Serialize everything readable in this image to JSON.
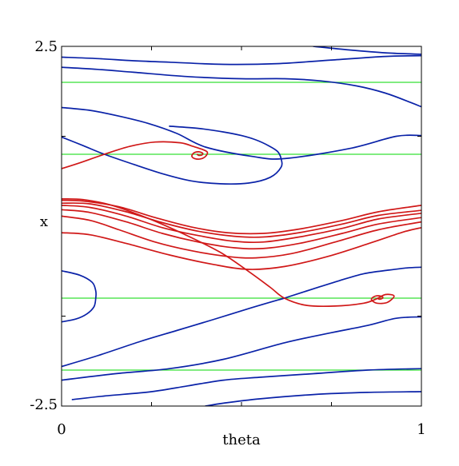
{
  "chart_data": {
    "type": "line",
    "title": "",
    "xlabel": "theta",
    "ylabel": "x",
    "xlim": [
      0,
      1
    ],
    "ylim": [
      -2.5,
      2.5
    ],
    "x_tick_labels": [
      "0",
      "1"
    ],
    "y_tick_labels": [
      "2.5",
      "-2.5"
    ],
    "grid": false,
    "colors": {
      "blue": "#0a22a8",
      "red": "#d01818",
      "green": "#34e034",
      "frame": "#000000"
    },
    "horizontal_lines": [
      2.0,
      1.0,
      -1.0,
      -2.0
    ],
    "fixed_points": [
      {
        "theta": 0.119,
        "x": 1.0,
        "kind": "saddle"
      },
      {
        "theta": 0.619,
        "x": -1.0,
        "kind": "saddle"
      },
      {
        "theta": 0.381,
        "x": 1.0,
        "kind": "focus"
      },
      {
        "theta": 0.881,
        "x": -1.0,
        "kind": "focus"
      }
    ],
    "series": [
      {
        "color": "blue",
        "values": [
          [
            0.0,
            2.35
          ],
          [
            0.1,
            2.33
          ],
          [
            0.2,
            2.3
          ],
          [
            0.3,
            2.28
          ],
          [
            0.45,
            2.25
          ],
          [
            0.6,
            2.26
          ],
          [
            0.75,
            2.31
          ],
          [
            0.9,
            2.36
          ],
          [
            1.0,
            2.37
          ]
        ]
      },
      {
        "color": "blue",
        "values": [
          [
            0.0,
            2.21
          ],
          [
            0.1,
            2.18
          ],
          [
            0.2,
            2.14
          ],
          [
            0.35,
            2.08
          ],
          [
            0.5,
            2.05
          ],
          [
            0.62,
            2.05
          ],
          [
            0.72,
            2.02
          ],
          [
            0.82,
            1.95
          ],
          [
            0.9,
            1.85
          ],
          [
            0.97,
            1.72
          ],
          [
            1.0,
            1.66
          ]
        ]
      },
      {
        "color": "blue",
        "values": [
          [
            0.0,
            1.65
          ],
          [
            0.08,
            1.61
          ],
          [
            0.16,
            1.53
          ],
          [
            0.24,
            1.43
          ],
          [
            0.32,
            1.29
          ],
          [
            0.4,
            1.1
          ],
          [
            0.53,
            0.97
          ],
          [
            0.62,
            0.94
          ],
          [
            0.8,
            1.08
          ],
          [
            0.93,
            1.25
          ],
          [
            1.0,
            1.26
          ]
        ]
      },
      {
        "color": "blue",
        "values": [
          [
            0.7,
            2.5
          ],
          [
            0.8,
            2.45
          ],
          [
            0.9,
            2.41
          ],
          [
            1.0,
            2.39
          ]
        ]
      },
      {
        "color": "blue",
        "values": [
          [
            0.0,
            1.24
          ],
          [
            0.06,
            1.12
          ],
          [
            0.119,
            1.0
          ],
          [
            0.2,
            0.86
          ],
          [
            0.28,
            0.73
          ],
          [
            0.36,
            0.63
          ],
          [
            0.44,
            0.59
          ],
          [
            0.52,
            0.6
          ],
          [
            0.58,
            0.68
          ],
          [
            0.61,
            0.82
          ],
          [
            0.61,
            0.94
          ],
          [
            0.6,
            1.04
          ],
          [
            0.575,
            1.12
          ],
          [
            0.54,
            1.2
          ],
          [
            0.5,
            1.26
          ],
          [
            0.45,
            1.31
          ],
          [
            0.38,
            1.36
          ],
          [
            0.3,
            1.39
          ]
        ]
      },
      {
        "color": "blue",
        "values": [
          [
            0.0,
            -0.62
          ],
          [
            0.05,
            -0.68
          ],
          [
            0.085,
            -0.78
          ],
          [
            0.095,
            -0.9
          ],
          [
            0.095,
            -1.0
          ],
          [
            0.09,
            -1.12
          ],
          [
            0.07,
            -1.22
          ],
          [
            0.04,
            -1.29
          ],
          [
            0.0,
            -1.33
          ]
        ]
      },
      {
        "color": "blue",
        "values": [
          [
            0.619,
            -1.0
          ],
          [
            0.7,
            -0.87
          ],
          [
            0.77,
            -0.76
          ],
          [
            0.84,
            -0.66
          ],
          [
            0.91,
            -0.61
          ],
          [
            0.96,
            -0.58
          ],
          [
            1.0,
            -0.57
          ]
        ]
      },
      {
        "color": "blue",
        "values": [
          [
            0.619,
            -1.0
          ],
          [
            0.53,
            -1.13
          ],
          [
            0.42,
            -1.3
          ],
          [
            0.32,
            -1.45
          ],
          [
            0.22,
            -1.6
          ],
          [
            0.1,
            -1.8
          ],
          [
            0.0,
            -1.95
          ]
        ]
      },
      {
        "color": "blue",
        "values": [
          [
            1.0,
            -1.26
          ],
          [
            0.93,
            -1.28
          ],
          [
            0.85,
            -1.38
          ],
          [
            0.75,
            -1.48
          ],
          [
            0.62,
            -1.62
          ],
          [
            0.45,
            -1.85
          ],
          [
            0.3,
            -1.98
          ],
          [
            0.15,
            -2.05
          ],
          [
            0.0,
            -2.14
          ]
        ]
      },
      {
        "color": "blue",
        "values": [
          [
            1.0,
            -1.98
          ],
          [
            0.85,
            -2.0
          ],
          [
            0.7,
            -2.05
          ],
          [
            0.55,
            -2.1
          ],
          [
            0.45,
            -2.14
          ],
          [
            0.35,
            -2.22
          ],
          [
            0.25,
            -2.3
          ],
          [
            0.12,
            -2.36
          ],
          [
            0.03,
            -2.41
          ]
        ]
      },
      {
        "color": "blue",
        "values": [
          [
            1.0,
            -2.3
          ],
          [
            0.85,
            -2.31
          ],
          [
            0.7,
            -2.34
          ],
          [
            0.55,
            -2.4
          ],
          [
            0.45,
            -2.46
          ],
          [
            0.4,
            -2.5
          ]
        ]
      },
      {
        "color": "red",
        "values": [
          [
            0.0,
            0.8
          ],
          [
            0.05,
            0.88
          ],
          [
            0.119,
            1.0
          ],
          [
            0.19,
            1.11
          ],
          [
            0.26,
            1.17
          ],
          [
            0.33,
            1.16
          ],
          [
            0.365,
            1.11
          ],
          [
            0.39,
            1.07
          ],
          [
            0.405,
            1.03
          ],
          [
            0.4,
            0.97
          ],
          [
            0.386,
            0.935
          ],
          [
            0.37,
            0.94
          ],
          [
            0.362,
            0.975
          ],
          [
            0.368,
            1.02
          ],
          [
            0.381,
            1.035
          ],
          [
            0.392,
            1.015
          ],
          [
            0.39,
            0.99
          ],
          [
            0.381,
            0.985
          ],
          [
            0.377,
            0.998
          ]
        ]
      },
      {
        "color": "red",
        "values": [
          [
            0.0,
            0.14
          ],
          [
            0.08,
            0.08
          ],
          [
            0.16,
            -0.05
          ],
          [
            0.26,
            -0.22
          ],
          [
            0.36,
            -0.34
          ],
          [
            0.46,
            -0.42
          ],
          [
            0.54,
            -0.44
          ],
          [
            0.64,
            -0.38
          ],
          [
            0.76,
            -0.22
          ],
          [
            0.88,
            -0.05
          ],
          [
            1.0,
            0.06
          ]
        ]
      },
      {
        "color": "red",
        "values": [
          [
            0.0,
            0.23
          ],
          [
            0.08,
            0.19
          ],
          [
            0.18,
            0.06
          ],
          [
            0.28,
            -0.1
          ],
          [
            0.38,
            -0.22
          ],
          [
            0.48,
            -0.3
          ],
          [
            0.56,
            -0.31
          ],
          [
            0.66,
            -0.24
          ],
          [
            0.78,
            -0.1
          ],
          [
            0.88,
            0.03
          ],
          [
            1.0,
            0.12
          ]
        ]
      },
      {
        "color": "red",
        "values": [
          [
            0.0,
            0.29
          ],
          [
            0.08,
            0.26
          ],
          [
            0.18,
            0.14
          ],
          [
            0.28,
            -0.02
          ],
          [
            0.38,
            -0.13
          ],
          [
            0.48,
            -0.21
          ],
          [
            0.56,
            -0.22
          ],
          [
            0.66,
            -0.15
          ],
          [
            0.78,
            -0.03
          ],
          [
            0.88,
            0.1
          ],
          [
            1.0,
            0.18
          ]
        ]
      },
      {
        "color": "red",
        "values": [
          [
            0.0,
            0.32
          ],
          [
            0.08,
            0.31
          ],
          [
            0.18,
            0.2
          ],
          [
            0.28,
            0.05
          ],
          [
            0.38,
            -0.07
          ],
          [
            0.48,
            -0.14
          ],
          [
            0.56,
            -0.15
          ],
          [
            0.66,
            -0.09
          ],
          [
            0.78,
            0.03
          ],
          [
            0.88,
            0.15
          ],
          [
            1.0,
            0.22
          ]
        ]
      },
      {
        "color": "red",
        "values": [
          [
            0.0,
            0.36
          ],
          [
            0.06,
            0.35
          ],
          [
            0.16,
            0.27
          ],
          [
            0.26,
            0.12
          ],
          [
            0.36,
            -0.01
          ],
          [
            0.46,
            -0.09
          ],
          [
            0.56,
            -0.1
          ],
          [
            0.66,
            -0.04
          ],
          [
            0.78,
            0.08
          ],
          [
            0.88,
            0.2
          ],
          [
            1.0,
            0.29
          ]
        ]
      },
      {
        "color": "red",
        "values": [
          [
            0.0,
            -0.09
          ],
          [
            0.08,
            -0.12
          ],
          [
            0.18,
            -0.24
          ],
          [
            0.3,
            -0.4
          ],
          [
            0.42,
            -0.53
          ],
          [
            0.52,
            -0.6
          ],
          [
            0.62,
            -0.56
          ],
          [
            0.74,
            -0.42
          ],
          [
            0.86,
            -0.23
          ],
          [
            0.95,
            -0.08
          ],
          [
            1.0,
            -0.02
          ]
        ]
      },
      {
        "color": "red",
        "values": [
          [
            0.0,
            0.38
          ],
          [
            0.06,
            0.37
          ],
          [
            0.14,
            0.29
          ],
          [
            0.24,
            0.11
          ],
          [
            0.34,
            -0.11
          ],
          [
            0.44,
            -0.36
          ],
          [
            0.52,
            -0.63
          ],
          [
            0.58,
            -0.85
          ],
          [
            0.619,
            -1.0
          ],
          [
            0.68,
            -1.1
          ],
          [
            0.76,
            -1.11
          ],
          [
            0.84,
            -1.07
          ],
          [
            0.875,
            -1.01
          ],
          [
            0.9,
            -0.95
          ],
          [
            0.924,
            -0.97
          ],
          [
            0.905,
            -1.06
          ],
          [
            0.876,
            -1.07
          ],
          [
            0.861,
            -1.02
          ],
          [
            0.87,
            -0.975
          ],
          [
            0.886,
            -0.97
          ],
          [
            0.893,
            -0.995
          ],
          [
            0.884,
            -1.015
          ],
          [
            0.878,
            -1.003
          ]
        ]
      }
    ]
  }
}
